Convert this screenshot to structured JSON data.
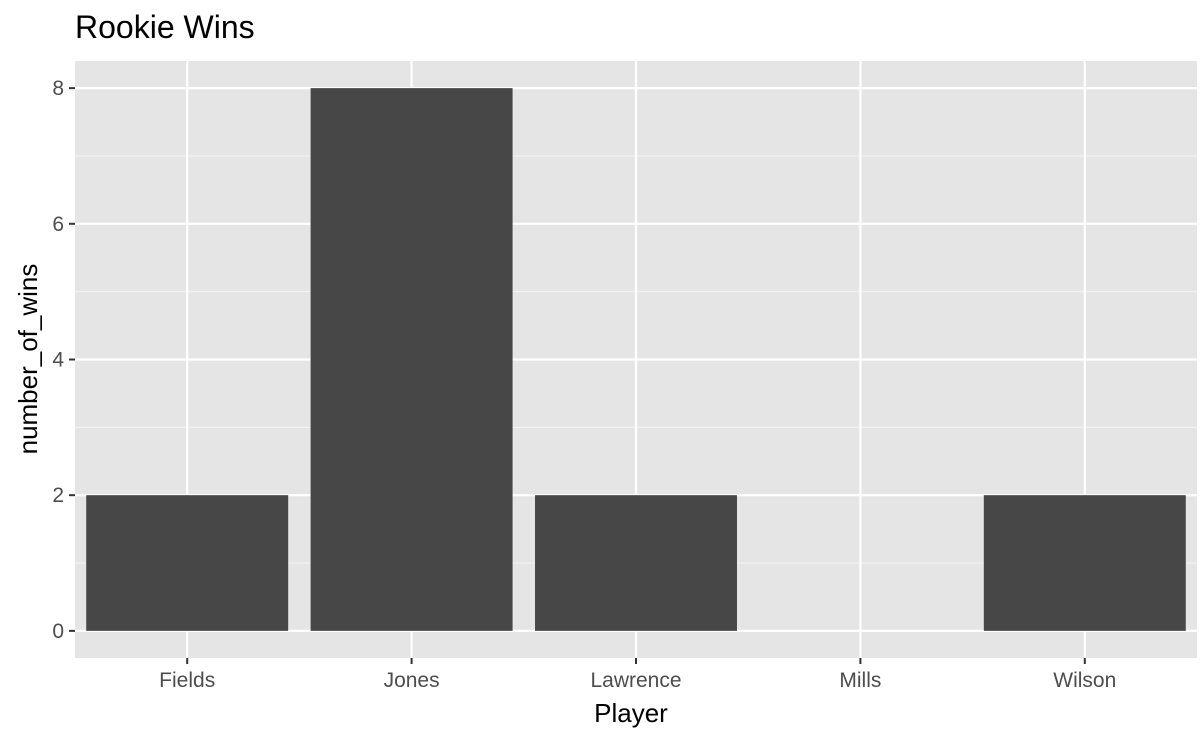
{
  "chart_data": {
    "type": "bar",
    "title": "Rookie Wins",
    "xlabel": "Player",
    "ylabel": "number_of_wins",
    "categories": [
      "Fields",
      "Jones",
      "Lawrence",
      "Mills",
      "Wilson"
    ],
    "values": [
      2,
      8,
      2,
      0,
      2
    ],
    "yticks": [
      0,
      2,
      4,
      6,
      8
    ],
    "ylim": [
      -0.4,
      8.4
    ],
    "grid": true,
    "legend": "none",
    "colors": {
      "bar": "#474747",
      "panel_background": "#e5e5e5",
      "grid_major": "#ffffff",
      "grid_minor": "#f2f2f2"
    }
  }
}
